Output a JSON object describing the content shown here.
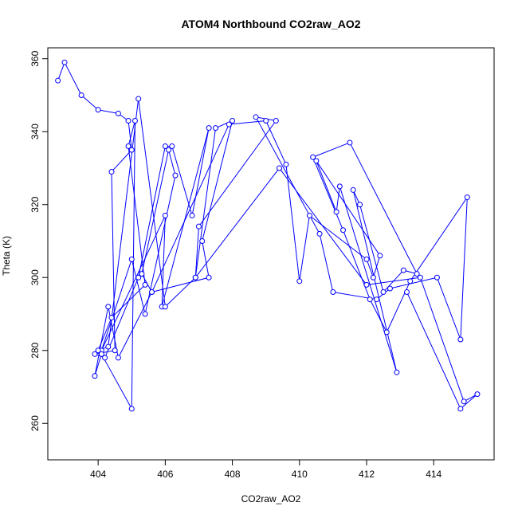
{
  "chart_data": {
    "type": "line",
    "title": "ATOM4 Northbound CO2raw_AO2",
    "xlabel": "CO2raw_AO2",
    "ylabel": "Theta (K)",
    "xlim": [
      402.5,
      415.8
    ],
    "ylim": [
      250,
      363
    ],
    "xticks": [
      404,
      406,
      408,
      410,
      412,
      414
    ],
    "yticks": [
      260,
      280,
      300,
      320,
      340,
      360
    ],
    "grid": false,
    "series_color": "#0000ff",
    "series": [
      {
        "style": "lines+points",
        "x": [
          402.8,
          403.0,
          403.5,
          404.0,
          404.6,
          404.9,
          405.0,
          404.4,
          404.5,
          403.9,
          404.2,
          405.2,
          406.0,
          406.2,
          406.8,
          407.3,
          405.9,
          406.0,
          404.1,
          405.0,
          405.4,
          406.3,
          406.1,
          405.3,
          405.6,
          407.9,
          409.0,
          409.6,
          410.0,
          410.3,
          412.0,
          412.2,
          412.4,
          410.5,
          411.1,
          411.2,
          412.9,
          411.6,
          411.8,
          412.5,
          413.1,
          413.5,
          411.5,
          410.4,
          411.3,
          412.1,
          412.6,
          413.3,
          415.0,
          414.8,
          414.1,
          412.7,
          412.3,
          411.0,
          410.6,
          408.7,
          409.3,
          407.0,
          406.9,
          407.5,
          408.0,
          407.1,
          407.3,
          405.6,
          404.6,
          404.3,
          403.9,
          404.1,
          405.0,
          405.1,
          404.9,
          405.4,
          404.4,
          404.0,
          404.3,
          405.2,
          406.0,
          406.9,
          409.4,
          412.0,
          413.6,
          414.9,
          415.3,
          414.8,
          413.2
        ],
        "y": [
          354,
          359,
          350,
          346,
          345,
          343,
          335,
          329,
          280,
          279,
          278,
          300,
          336,
          336,
          317,
          341,
          292,
          317,
          280,
          305,
          290,
          328,
          335,
          301,
          296,
          342,
          343,
          331,
          299,
          317,
          305,
          300,
          306,
          332,
          318,
          325,
          274,
          324,
          320,
          296,
          302,
          301,
          337,
          333,
          313,
          294,
          285,
          299,
          322,
          283,
          300,
          297,
          294,
          296,
          312,
          344,
          343,
          314,
          300,
          341,
          343,
          310,
          300,
          296,
          278,
          292,
          273,
          279,
          264,
          343,
          336,
          298,
          289,
          280,
          281,
          349,
          292,
          300,
          330,
          298,
          300,
          266,
          268,
          264,
          296
        ]
      }
    ]
  }
}
